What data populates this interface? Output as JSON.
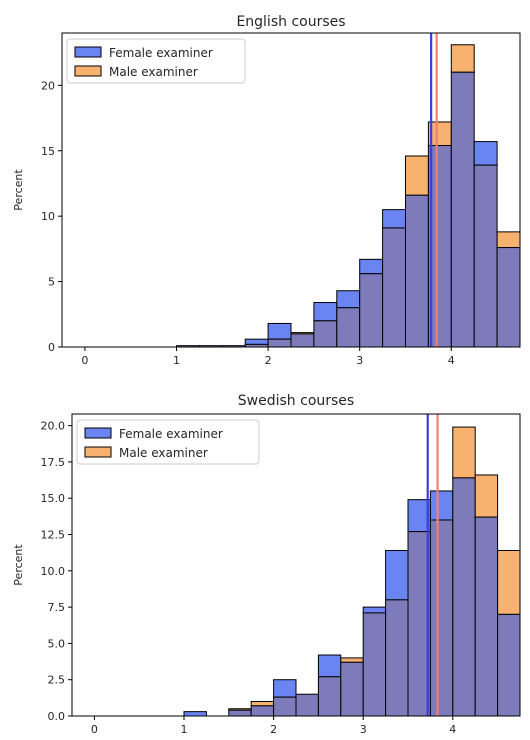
{
  "colors": {
    "female": "#6a85f2",
    "male": "#f7b270",
    "overlap": "#7d7bba",
    "female_mean_line": "#3c3ce0",
    "male_mean_line": "#f08070"
  },
  "chart_data": [
    {
      "type": "histogram",
      "title": "English courses",
      "xlabel": "",
      "ylabel": "Percent",
      "xlim": [
        -0.25,
        4.75
      ],
      "ylim": [
        0,
        24
      ],
      "xticks": [
        "0",
        "1",
        "2",
        "3",
        "4"
      ],
      "yticks": [
        "0",
        "5",
        "10",
        "15",
        "20"
      ],
      "legend_position": "top-left",
      "bin_edges": [
        1.0,
        1.25,
        1.5,
        1.75,
        2.0,
        2.25,
        2.5,
        2.75,
        3.0,
        3.25,
        3.5,
        3.75,
        4.0,
        4.25,
        4.5,
        4.75
      ],
      "series": [
        {
          "name": "Female examiner",
          "values": [
            0.1,
            0.1,
            0.1,
            0.6,
            1.8,
            1.0,
            3.4,
            4.3,
            6.7,
            10.5,
            11.6,
            15.4,
            21.0,
            15.7,
            7.6
          ]
        },
        {
          "name": "Male examiner",
          "values": [
            0.1,
            0.1,
            0.1,
            0.2,
            0.6,
            1.1,
            2.0,
            3.0,
            5.6,
            9.1,
            14.6,
            17.2,
            23.1,
            13.9,
            8.8
          ]
        }
      ],
      "mean_lines": {
        "female": 3.78,
        "male": 3.84
      }
    },
    {
      "type": "histogram",
      "title": "Swedish courses",
      "xlabel": "",
      "ylabel": "Percent",
      "xlim": [
        -0.25,
        4.75
      ],
      "ylim": [
        0,
        20.8
      ],
      "xticks": [
        "0",
        "1",
        "2",
        "3",
        "4"
      ],
      "yticks": [
        "0.0",
        "2.5",
        "5.0",
        "7.5",
        "10.0",
        "12.5",
        "15.0",
        "17.5",
        "20.0"
      ],
      "legend_position": "top-left",
      "bin_edges": [
        1.0,
        1.25,
        1.5,
        1.75,
        2.0,
        2.25,
        2.5,
        2.75,
        3.0,
        3.25,
        3.5,
        3.75,
        4.0,
        4.25,
        4.5,
        4.75
      ],
      "series": [
        {
          "name": "Female examiner",
          "values": [
            0.3,
            0.0,
            0.4,
            0.7,
            2.5,
            1.5,
            4.2,
            3.7,
            7.5,
            11.4,
            14.9,
            15.5,
            16.4,
            13.7,
            7.0
          ]
        },
        {
          "name": "Male examiner",
          "values": [
            0.0,
            0.0,
            0.5,
            1.0,
            1.3,
            1.5,
            2.7,
            4.0,
            7.1,
            8.0,
            12.7,
            13.5,
            19.9,
            16.6,
            11.4
          ]
        }
      ],
      "mean_lines": {
        "female": 3.72,
        "male": 3.83
      }
    }
  ]
}
